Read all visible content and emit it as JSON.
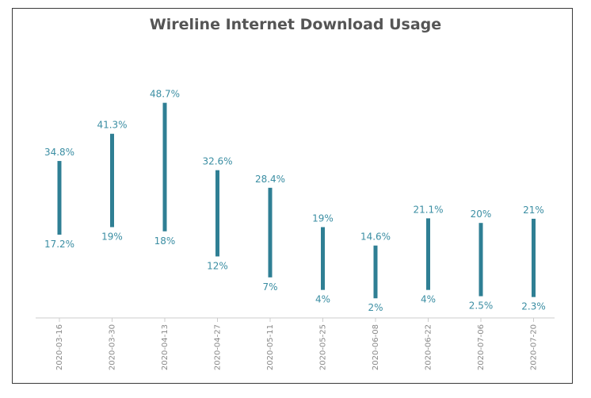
{
  "chart_data": {
    "type": "range-bar",
    "title": "Wireline Internet Download Usage",
    "categories": [
      "2020-03-16",
      "2020-03-30",
      "2020-04-13",
      "2020-04-27",
      "2020-05-11",
      "2020-05-25",
      "2020-06-08",
      "2020-06-22",
      "2020-07-06",
      "2020-07-20"
    ],
    "high": [
      34.8,
      41.3,
      48.7,
      32.6,
      28.4,
      19,
      14.6,
      21.1,
      20,
      21
    ],
    "low": [
      17.2,
      19,
      18,
      12,
      7,
      4,
      2,
      4,
      2.5,
      2.3
    ],
    "high_labels": [
      "34.8%",
      "41.3%",
      "48.7%",
      "32.6%",
      "28.4%",
      "19%",
      "14.6%",
      "21.1%",
      "20%",
      "21%"
    ],
    "low_labels": [
      "17.2%",
      "19%",
      "18%",
      "12%",
      "7%",
      "4%",
      "2%",
      "4%",
      "2.5%",
      "2.3%"
    ],
    "ylim": [
      -2.5,
      60
    ],
    "grid": false,
    "legend": "none",
    "bar_color": "#2f7f94",
    "label_color": "#3b8ea3"
  }
}
